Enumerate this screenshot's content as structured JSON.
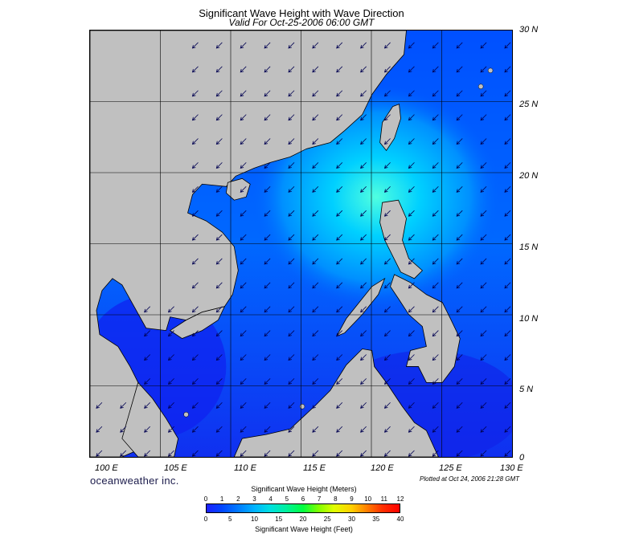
{
  "title": "Significant Wave Height with Wave Direction",
  "subtitle": "Valid For Oct-25-2006 06:00 GMT",
  "lat_labels": [
    "30 N",
    "25 N",
    "20 N",
    "15 N",
    "10 N",
    "5 N",
    "0"
  ],
  "lon_labels": [
    "100 E",
    "105 E",
    "110 E",
    "115 E",
    "120 E",
    "125 E",
    "130 E"
  ],
  "brand": "oceanweather inc.",
  "plotted": "Plotted at Oct 24, 2006 21:28 GMT",
  "colorbar": {
    "title_meters": "Significant Wave Height (Meters)",
    "title_feet": "Significant Wave Height (Feet)",
    "meter_ticks": [
      "0",
      "1",
      "2",
      "3",
      "4",
      "5",
      "6",
      "7",
      "8",
      "9",
      "10",
      "11",
      "12"
    ],
    "feet_ticks": [
      "0",
      "5",
      "10",
      "15",
      "20",
      "25",
      "30",
      "35",
      "40"
    ]
  },
  "colors": {
    "land": "#c0c0c0",
    "sea_low": "#1e20ff",
    "sea_mid": "#00c8ff",
    "sea_high": "#40ffd0",
    "arrow": "#000050"
  },
  "map_extent": {
    "lon_min": 100,
    "lon_max": 130,
    "lat_min": 0,
    "lat_max": 30
  },
  "wave_direction": "toward-southwest"
}
